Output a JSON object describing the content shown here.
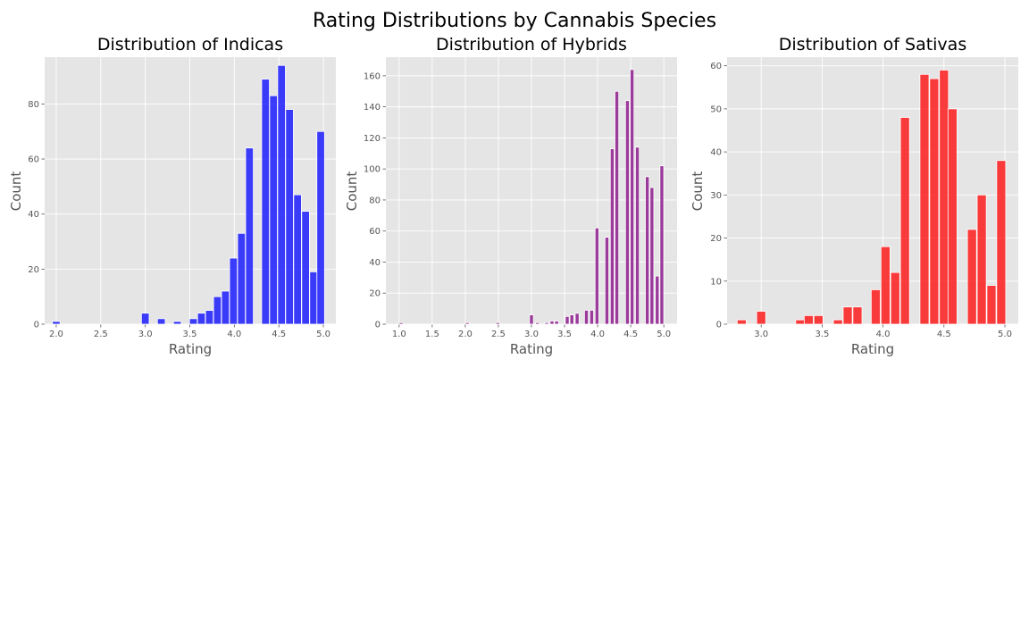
{
  "figure": {
    "suptitle": "Rating Distributions by Cannabis Species",
    "background": "#e5e5e5",
    "grid": true,
    "grid_color": "#ffffff"
  },
  "chart_data": [
    {
      "type": "bar",
      "title": "Distribution of Indicas",
      "xlabel": "Rating",
      "ylabel": "Count",
      "color": "#0000ff",
      "opacity": 0.75,
      "bin_width": 0.0862,
      "xlim": [
        1.87,
        5.14
      ],
      "ylim": [
        0,
        97
      ],
      "xticks": [
        2.0,
        2.5,
        3.0,
        3.5,
        4.0,
        4.5,
        5.0
      ],
      "xtick_labels": [
        "2.0",
        "2.5",
        "3.0",
        "3.5",
        "4.0",
        "4.5",
        "5.0"
      ],
      "yticks": [
        0,
        20,
        40,
        60,
        80
      ],
      "ytick_labels": [
        "0",
        "20",
        "40",
        "60",
        "80"
      ],
      "bins": [
        {
          "x": 2.0,
          "count": 1
        },
        {
          "x": 3.0,
          "count": 4
        },
        {
          "x": 3.18,
          "count": 2
        },
        {
          "x": 3.36,
          "count": 1
        },
        {
          "x": 3.54,
          "count": 2
        },
        {
          "x": 3.63,
          "count": 4
        },
        {
          "x": 3.72,
          "count": 5
        },
        {
          "x": 3.81,
          "count": 10
        },
        {
          "x": 3.9,
          "count": 12
        },
        {
          "x": 3.99,
          "count": 24
        },
        {
          "x": 4.08,
          "count": 33
        },
        {
          "x": 4.17,
          "count": 64
        },
        {
          "x": 4.35,
          "count": 89
        },
        {
          "x": 4.44,
          "count": 83
        },
        {
          "x": 4.53,
          "count": 94
        },
        {
          "x": 4.62,
          "count": 78
        },
        {
          "x": 4.71,
          "count": 47
        },
        {
          "x": 4.8,
          "count": 41
        },
        {
          "x": 4.89,
          "count": 19
        },
        {
          "x": 4.97,
          "count": 70
        }
      ]
    },
    {
      "type": "bar",
      "title": "Distribution of Hybrids",
      "xlabel": "Rating",
      "ylabel": "Count",
      "color": "#800080",
      "opacity": 0.75,
      "bin_width": 0.0571,
      "xlim": [
        0.8,
        5.2
      ],
      "ylim": [
        0,
        172
      ],
      "xticks": [
        1.0,
        1.5,
        2.0,
        2.5,
        3.0,
        3.5,
        4.0,
        4.5,
        5.0
      ],
      "xtick_labels": [
        "1.0",
        "1.5",
        "2.0",
        "2.5",
        "3.0",
        "3.5",
        "4.0",
        "4.5",
        "5.0"
      ],
      "yticks": [
        0,
        20,
        40,
        60,
        80,
        100,
        120,
        140,
        160
      ],
      "ytick_labels": [
        "0",
        "20",
        "40",
        "60",
        "80",
        "100",
        "120",
        "140",
        "160"
      ],
      "bins": [
        {
          "x": 1.03,
          "count": 1
        },
        {
          "x": 2.03,
          "count": 1
        },
        {
          "x": 2.49,
          "count": 1
        },
        {
          "x": 3.0,
          "count": 6
        },
        {
          "x": 3.09,
          "count": 1
        },
        {
          "x": 3.23,
          "count": 1
        },
        {
          "x": 3.31,
          "count": 2
        },
        {
          "x": 3.38,
          "count": 2
        },
        {
          "x": 3.54,
          "count": 5
        },
        {
          "x": 3.61,
          "count": 6
        },
        {
          "x": 3.69,
          "count": 7
        },
        {
          "x": 3.83,
          "count": 9
        },
        {
          "x": 3.91,
          "count": 9
        },
        {
          "x": 3.99,
          "count": 62
        },
        {
          "x": 4.14,
          "count": 56
        },
        {
          "x": 4.22,
          "count": 113
        },
        {
          "x": 4.29,
          "count": 150
        },
        {
          "x": 4.45,
          "count": 144
        },
        {
          "x": 4.52,
          "count": 164
        },
        {
          "x": 4.6,
          "count": 114
        },
        {
          "x": 4.75,
          "count": 95
        },
        {
          "x": 4.82,
          "count": 88
        },
        {
          "x": 4.9,
          "count": 31
        },
        {
          "x": 4.97,
          "count": 102
        }
      ]
    },
    {
      "type": "bar",
      "title": "Distribution of Sativas",
      "xlabel": "Rating",
      "ylabel": "Count",
      "color": "#ff0000",
      "opacity": 0.75,
      "bin_width": 0.0741,
      "xlim": [
        2.72,
        5.11
      ],
      "ylim": [
        0,
        62
      ],
      "xticks": [
        3.0,
        3.5,
        4.0,
        4.5,
        5.0
      ],
      "xtick_labels": [
        "3.0",
        "3.5",
        "4.0",
        "4.5",
        "5.0"
      ],
      "yticks": [
        0,
        10,
        20,
        30,
        40,
        50,
        60
      ],
      "ytick_labels": [
        "0",
        "10",
        "20",
        "30",
        "40",
        "50",
        "60"
      ],
      "bins": [
        {
          "x": 2.84,
          "count": 1
        },
        {
          "x": 3.0,
          "count": 3
        },
        {
          "x": 3.32,
          "count": 1
        },
        {
          "x": 3.39,
          "count": 2
        },
        {
          "x": 3.47,
          "count": 2
        },
        {
          "x": 3.63,
          "count": 1
        },
        {
          "x": 3.71,
          "count": 4
        },
        {
          "x": 3.79,
          "count": 4
        },
        {
          "x": 3.94,
          "count": 8
        },
        {
          "x": 4.02,
          "count": 18
        },
        {
          "x": 4.1,
          "count": 12
        },
        {
          "x": 4.18,
          "count": 48
        },
        {
          "x": 4.34,
          "count": 58
        },
        {
          "x": 4.42,
          "count": 57
        },
        {
          "x": 4.5,
          "count": 59
        },
        {
          "x": 4.57,
          "count": 50
        },
        {
          "x": 4.73,
          "count": 22
        },
        {
          "x": 4.81,
          "count": 30
        },
        {
          "x": 4.89,
          "count": 9
        },
        {
          "x": 4.97,
          "count": 38
        }
      ]
    }
  ]
}
